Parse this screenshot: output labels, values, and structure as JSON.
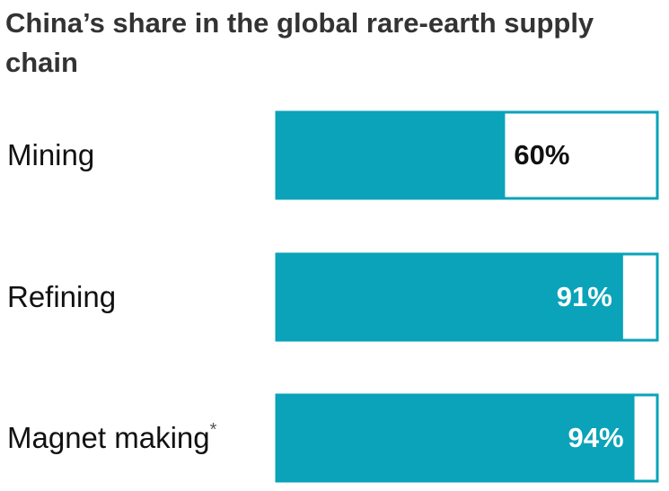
{
  "chart_data": {
    "type": "hbar",
    "title": "China’s share in the global rare-earth supply chain",
    "categories": [
      "Mining",
      "Refining",
      "Magnet making"
    ],
    "category_notes": [
      null,
      null,
      "*"
    ],
    "values": [
      60,
      91,
      94
    ],
    "value_labels": [
      "60%",
      "91%",
      "94%"
    ],
    "color": "#0aa3b9",
    "xlim": [
      0,
      100
    ]
  }
}
